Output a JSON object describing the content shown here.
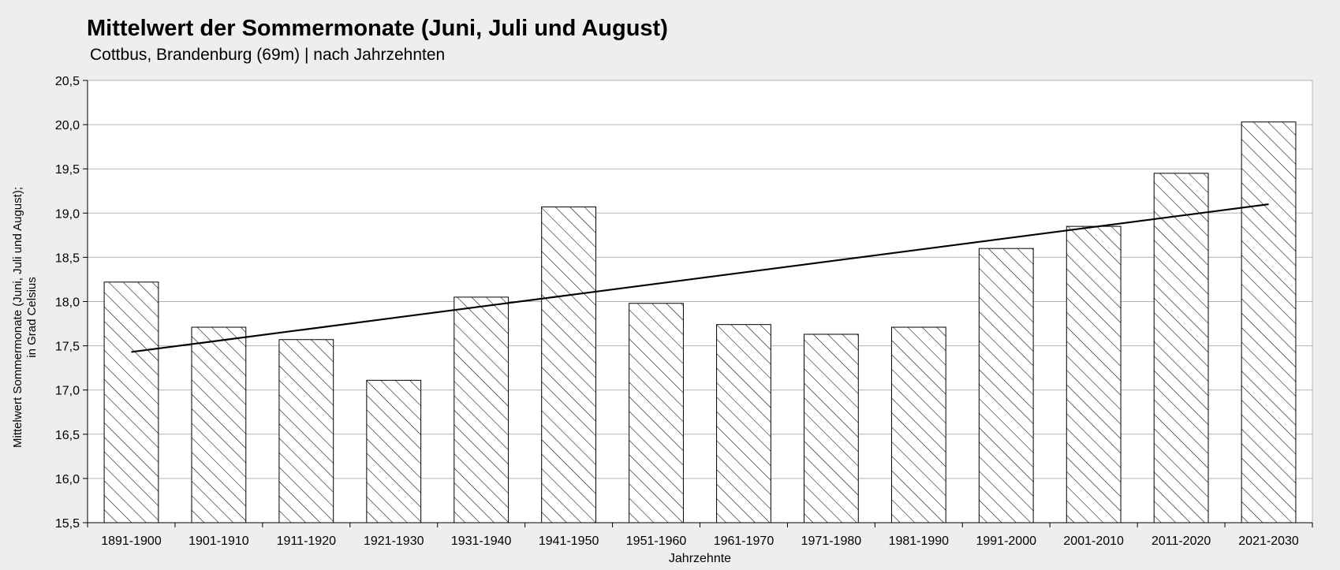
{
  "chart_data": {
    "type": "bar",
    "title": "Mittelwert der Sommermonate (Juni, Juli und August)",
    "subtitle": "Cottbus, Brandenburg (69m) | nach Jahrzehnten",
    "xlabel": "Jahrzehnte",
    "ylabel_lines": [
      "Mittelwert Sommermonate (Juni, Juli und August);",
      "in Grad Celsius"
    ],
    "categories": [
      "1891-1900",
      "1901-1910",
      "1911-1920",
      "1921-1930",
      "1931-1940",
      "1941-1950",
      "1951-1960",
      "1961-1970",
      "1971-1980",
      "1981-1990",
      "1991-2000",
      "2001-2010",
      "2011-2020",
      "2021-2030"
    ],
    "values": [
      18.22,
      17.71,
      17.57,
      17.11,
      18.05,
      19.07,
      17.98,
      17.74,
      17.63,
      17.71,
      18.6,
      18.85,
      19.45,
      20.03
    ],
    "trendline": {
      "start": 17.43,
      "end": 19.1
    },
    "ylim": [
      15.5,
      20.5
    ],
    "yticks": [
      "15,5",
      "16,0",
      "16,5",
      "17,0",
      "17,5",
      "18,0",
      "18,5",
      "19,0",
      "19,5",
      "20,0",
      "20,5"
    ],
    "grid": true,
    "bar_pattern": "diagonal-hatch",
    "colors": {
      "bar_fill": "#ffffff",
      "bar_stroke": "#000000",
      "grid": "#b3b3b3",
      "trend": "#000000",
      "background": "#eeeeee",
      "plot_background": "#ffffff"
    }
  }
}
